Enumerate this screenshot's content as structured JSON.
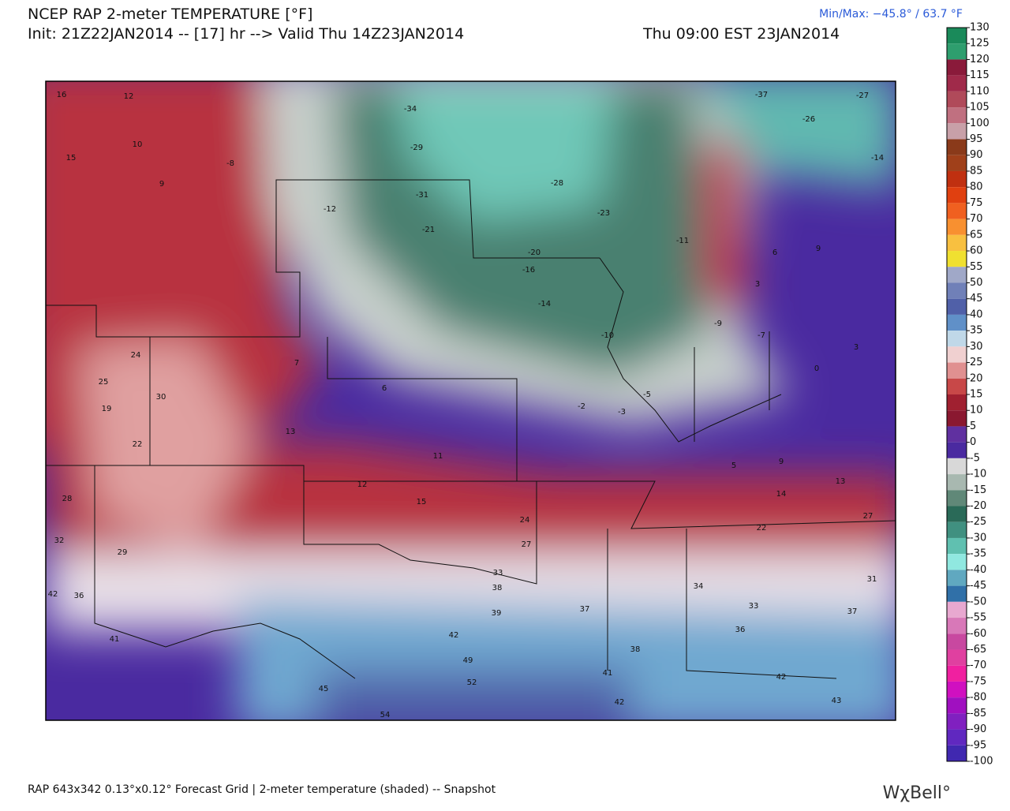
{
  "header": {
    "title": "NCEP RAP 2-meter TEMPERATURE [°F]",
    "init": "Init: 21Z22JAN2014 -- [17] hr --> Valid Thu 14Z23JAN2014",
    "valid_local": "Thu 09:00 EST 23JAN2014",
    "minmax": "Min/Max: −45.8° /  63.7 °F"
  },
  "colorbar": {
    "ticks": [
      130,
      125,
      120,
      115,
      110,
      105,
      100,
      95,
      90,
      85,
      80,
      75,
      70,
      65,
      60,
      55,
      50,
      45,
      40,
      35,
      30,
      25,
      20,
      15,
      10,
      5,
      0,
      -5,
      -10,
      -15,
      -20,
      -25,
      -30,
      -35,
      -40,
      -45,
      -50,
      -55,
      -60,
      -65,
      -70,
      -75,
      -80,
      -85,
      -90,
      -95,
      -100
    ],
    "colors": [
      "#1a8a5a",
      "#2e9e6e",
      "#8a1a3a",
      "#a02a4a",
      "#b04a5a",
      "#c07080",
      "#c8a0a8",
      "#8a3a1a",
      "#a0401a",
      "#c03010",
      "#e04010",
      "#f06020",
      "#f89030",
      "#f8c040",
      "#f0e030",
      "#a0a8c8",
      "#7080b8",
      "#5060a8",
      "#6090c8",
      "#c0d8e8",
      "#f0d0d0",
      "#e09090",
      "#c84848",
      "#a02030",
      "#8a1830",
      "#6030a0",
      "#4a2aa0",
      "#d8d8d8",
      "#a8b8b0",
      "#608878",
      "#2a6a58",
      "#409080",
      "#60c0b0",
      "#90e8e0",
      "#60a8c0",
      "#3070a8",
      "#e8a8d0",
      "#d878b8",
      "#c848a0",
      "#e040a0",
      "#f020a0",
      "#d010c0",
      "#a010c0",
      "#8020c0",
      "#6028c0",
      "#4028b0"
    ]
  },
  "map": {
    "stations": [
      -34,
      -37,
      -27,
      -26,
      -14,
      -31,
      -29,
      -21,
      -12,
      -8,
      16,
      12,
      10,
      15,
      9,
      24,
      25,
      30,
      19,
      22,
      28,
      32,
      29,
      42,
      36,
      41,
      13,
      7,
      6,
      11,
      12,
      15,
      24,
      27,
      33,
      38,
      39,
      42,
      49,
      52,
      54,
      45,
      37,
      38,
      41,
      42,
      34,
      36,
      33,
      42,
      43,
      37,
      31,
      22,
      27,
      14,
      13,
      9,
      5,
      -2,
      -3,
      -5,
      -9,
      -7,
      -10,
      -14,
      -16,
      -20,
      -28,
      -23,
      -11,
      3,
      6,
      9,
      0,
      3
    ]
  },
  "footer": {
    "description": "RAP 643x342 0.13°x0.12° Forecast Grid | 2-meter temperature (shaded) -- Snapshot",
    "brand": "WχBell°"
  }
}
